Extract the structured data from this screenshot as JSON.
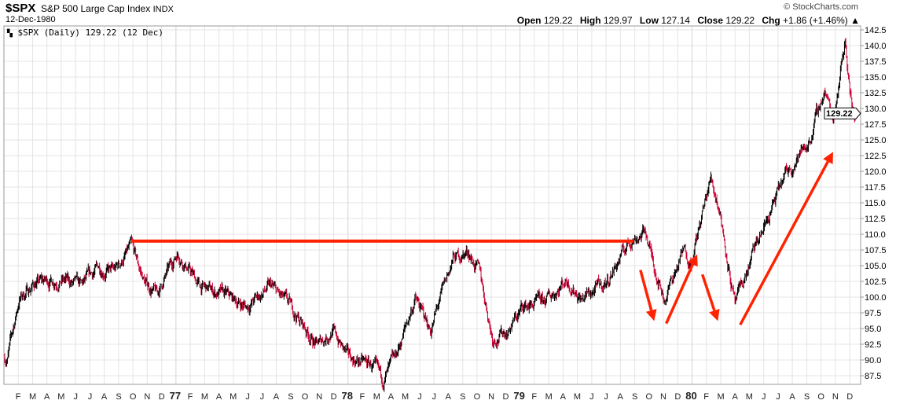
{
  "header": {
    "symbol": "$SPX",
    "name": "S&P 500 Large Cap Index",
    "exchange": "INDX",
    "date": "12-Dec-1980",
    "copyright": "© StockCharts.com",
    "open_label": "Open",
    "open": "129.22",
    "high_label": "High",
    "high": "129.97",
    "low_label": "Low",
    "low": "127.14",
    "close_label": "Close",
    "close": "129.22",
    "chg_label": "Chg",
    "chg": "+1.86 (+1.46%) ▲"
  },
  "legend": "$SPX (Daily) 129.22 (12 Dec)",
  "price_tag": "129.22",
  "colors": {
    "up": "#000000",
    "down": "#cc0033",
    "annotation": "#ff2200",
    "grid": "#e4e4e4"
  },
  "chart_data": {
    "type": "ohlc",
    "title": "$SPX S&P 500 Large Cap Index (Daily)",
    "xlim": [
      1976.0,
      1980.98
    ],
    "ylim": [
      86.5,
      143.5
    ],
    "yticks": [
      87.5,
      90.0,
      92.5,
      95.0,
      97.5,
      100.0,
      102.5,
      105.0,
      107.5,
      110.0,
      112.5,
      115.0,
      117.5,
      120.0,
      122.5,
      125.0,
      127.5,
      130.0,
      132.5,
      135.0,
      137.5,
      140.0,
      142.5
    ],
    "xticks": [
      {
        "t": 1976.083,
        "label": "F"
      },
      {
        "t": 1976.167,
        "label": "M"
      },
      {
        "t": 1976.25,
        "label": "A"
      },
      {
        "t": 1976.333,
        "label": "M"
      },
      {
        "t": 1976.417,
        "label": "J"
      },
      {
        "t": 1976.5,
        "label": "J"
      },
      {
        "t": 1976.583,
        "label": "A"
      },
      {
        "t": 1976.667,
        "label": "S"
      },
      {
        "t": 1976.75,
        "label": "O"
      },
      {
        "t": 1976.833,
        "label": "N"
      },
      {
        "t": 1976.917,
        "label": "D"
      },
      {
        "t": 1977.0,
        "label": "77",
        "bold": true
      },
      {
        "t": 1977.083,
        "label": "F"
      },
      {
        "t": 1977.167,
        "label": "M"
      },
      {
        "t": 1977.25,
        "label": "A"
      },
      {
        "t": 1977.333,
        "label": "M"
      },
      {
        "t": 1977.417,
        "label": "J"
      },
      {
        "t": 1977.5,
        "label": "J"
      },
      {
        "t": 1977.583,
        "label": "A"
      },
      {
        "t": 1977.667,
        "label": "S"
      },
      {
        "t": 1977.75,
        "label": "O"
      },
      {
        "t": 1977.833,
        "label": "N"
      },
      {
        "t": 1977.917,
        "label": "D"
      },
      {
        "t": 1978.0,
        "label": "78",
        "bold": true
      },
      {
        "t": 1978.083,
        "label": "F"
      },
      {
        "t": 1978.167,
        "label": "M"
      },
      {
        "t": 1978.25,
        "label": "A"
      },
      {
        "t": 1978.333,
        "label": "M"
      },
      {
        "t": 1978.417,
        "label": "J"
      },
      {
        "t": 1978.5,
        "label": "J"
      },
      {
        "t": 1978.583,
        "label": "A"
      },
      {
        "t": 1978.667,
        "label": "S"
      },
      {
        "t": 1978.75,
        "label": "O"
      },
      {
        "t": 1978.833,
        "label": "N"
      },
      {
        "t": 1978.917,
        "label": "D"
      },
      {
        "t": 1979.0,
        "label": "79",
        "bold": true
      },
      {
        "t": 1979.083,
        "label": "F"
      },
      {
        "t": 1979.167,
        "label": "M"
      },
      {
        "t": 1979.25,
        "label": "A"
      },
      {
        "t": 1979.333,
        "label": "M"
      },
      {
        "t": 1979.417,
        "label": "J"
      },
      {
        "t": 1979.5,
        "label": "J"
      },
      {
        "t": 1979.583,
        "label": "A"
      },
      {
        "t": 1979.667,
        "label": "S"
      },
      {
        "t": 1979.75,
        "label": "O"
      },
      {
        "t": 1979.833,
        "label": "N"
      },
      {
        "t": 1979.917,
        "label": "D"
      },
      {
        "t": 1980.0,
        "label": "80",
        "bold": true
      },
      {
        "t": 1980.083,
        "label": "F"
      },
      {
        "t": 1980.167,
        "label": "M"
      },
      {
        "t": 1980.25,
        "label": "A"
      },
      {
        "t": 1980.333,
        "label": "M"
      },
      {
        "t": 1980.417,
        "label": "J"
      },
      {
        "t": 1980.5,
        "label": "J"
      },
      {
        "t": 1980.583,
        "label": "A"
      },
      {
        "t": 1980.667,
        "label": "S"
      },
      {
        "t": 1980.75,
        "label": "O"
      },
      {
        "t": 1980.833,
        "label": "N"
      },
      {
        "t": 1980.917,
        "label": "D"
      }
    ],
    "price_path": [
      [
        1976.02,
        90.4
      ],
      [
        1976.09,
        99.75
      ],
      [
        1976.18,
        102.25
      ],
      [
        1976.32,
        102.9
      ],
      [
        1976.45,
        101.6
      ],
      [
        1976.55,
        104.75
      ],
      [
        1976.64,
        104.0
      ],
      [
        1976.74,
        107.9
      ],
      [
        1976.82,
        102.25
      ],
      [
        1976.89,
        100.4
      ],
      [
        1977.01,
        107.25
      ],
      [
        1977.14,
        101.6
      ],
      [
        1977.27,
        100.4
      ],
      [
        1977.41,
        98.5
      ],
      [
        1977.55,
        101.6
      ],
      [
        1977.68,
        97.9
      ],
      [
        1977.82,
        92.25
      ],
      [
        1977.91,
        94.75
      ],
      [
        1978.0,
        90.4
      ],
      [
        1978.14,
        89.1
      ],
      [
        1978.2,
        86.6
      ],
      [
        1978.27,
        89.75
      ],
      [
        1978.39,
        99.75
      ],
      [
        1978.48,
        94.75
      ],
      [
        1978.61,
        106.0
      ],
      [
        1978.7,
        107.25
      ],
      [
        1978.77,
        103.5
      ],
      [
        1978.84,
        93.5
      ],
      [
        1978.93,
        94.75
      ],
      [
        1979.02,
        98.5
      ],
      [
        1979.14,
        99.1
      ],
      [
        1979.27,
        102.9
      ],
      [
        1979.36,
        99.75
      ],
      [
        1979.5,
        102.25
      ],
      [
        1979.64,
        109.1
      ],
      [
        1979.73,
        110.4
      ],
      [
        1979.77,
        106.0
      ],
      [
        1979.84,
        99.75
      ],
      [
        1979.95,
        107.25
      ],
      [
        1980.0,
        106.0
      ],
      [
        1980.11,
        119.0
      ],
      [
        1980.16,
        114.1
      ],
      [
        1980.25,
        98.5
      ],
      [
        1980.36,
        107.25
      ],
      [
        1980.55,
        119.75
      ],
      [
        1980.68,
        124.75
      ],
      [
        1980.77,
        132.9
      ],
      [
        1980.82,
        128.5
      ],
      [
        1980.89,
        141.0
      ],
      [
        1980.93,
        129.75
      ],
      [
        1980.95,
        128.5
      ]
    ],
    "annotations": {
      "resistance_line": {
        "from": [
          1976.74,
          108.9
        ],
        "to": [
          1979.66,
          108.9
        ]
      },
      "arrows": [
        {
          "from": [
            1979.7,
            104.3
          ],
          "to": [
            1979.78,
            96.2
          ]
        },
        {
          "from": [
            1979.85,
            95.8
          ],
          "to": [
            1980.03,
            106.8
          ]
        },
        {
          "from": [
            1980.06,
            103.6
          ],
          "to": [
            1980.15,
            96.2
          ]
        },
        {
          "from": [
            1980.28,
            95.6
          ],
          "to": [
            1980.82,
            123.1
          ]
        }
      ]
    }
  }
}
